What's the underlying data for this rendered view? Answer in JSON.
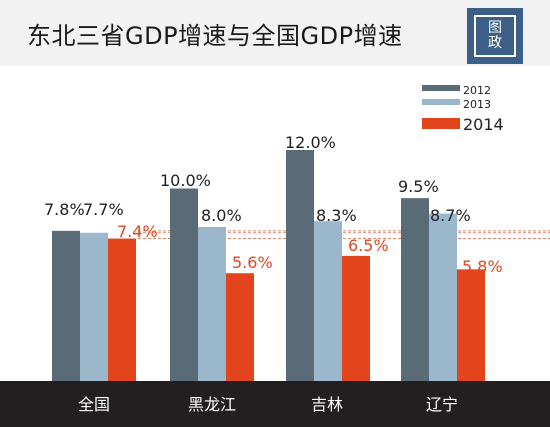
{
  "header": {
    "title": "东北三省GDP增速与全国GDP增速",
    "badge_top": "图",
    "badge_bottom": "政"
  },
  "colors": {
    "s2012": "#5a6b78",
    "s2013": "#9bb7cc",
    "s2014": "#e2451c",
    "axis_bar": "#231f20",
    "ref_line": "#d86a4a"
  },
  "chart_data": {
    "type": "bar",
    "title": "东北三省GDP增速与全国GDP增速",
    "categories": [
      "全国",
      "黑龙江",
      "吉林",
      "辽宁"
    ],
    "series": [
      {
        "name": "2012",
        "values": [
          7.8,
          10.0,
          12.0,
          9.5
        ],
        "labels": [
          "7.8%",
          "10.0%",
          "12.0%",
          "9.5%"
        ]
      },
      {
        "name": "2013",
        "values": [
          7.7,
          8.0,
          8.3,
          8.7
        ],
        "labels": [
          "7.7%",
          "8.0%",
          "8.3%",
          "8.7%"
        ]
      },
      {
        "name": "2014",
        "values": [
          7.4,
          5.6,
          6.5,
          5.8
        ],
        "labels": [
          "7.4%",
          "5.6%",
          "6.5%",
          "5.8%"
        ]
      }
    ],
    "ylim": [
      0,
      12.8
    ],
    "grid": false,
    "legend_position": "top-right",
    "reference_lines": [
      7.8,
      7.7,
      7.4
    ]
  }
}
